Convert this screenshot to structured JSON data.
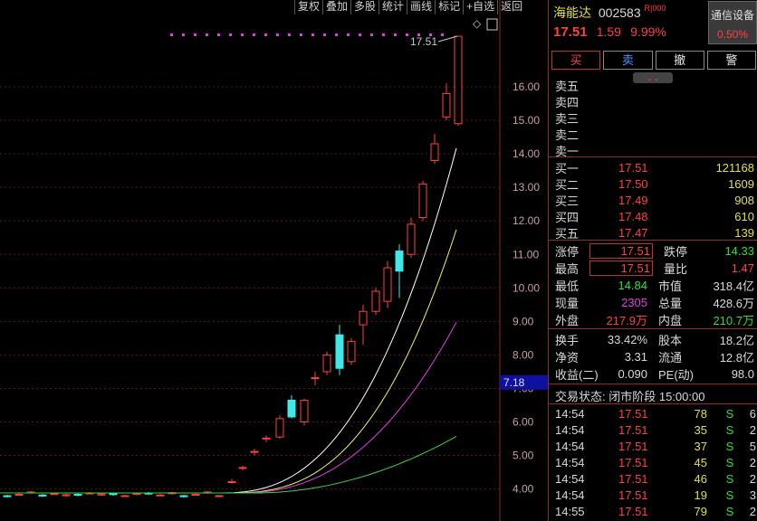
{
  "toolbar": [
    "复权",
    "叠加",
    "多股",
    "统计",
    "画线",
    "标记",
    "+自选",
    "返回"
  ],
  "stock": {
    "name": "海能达",
    "code": "002583",
    "tag": "R|000",
    "price": "17.51",
    "change": "1.59",
    "pct": "9.99%"
  },
  "settings_button": {
    "label": "通信设备",
    "value": "0.50%"
  },
  "actions": [
    "买",
    "卖",
    "撤",
    "警"
  ],
  "sell_labels": [
    "卖五",
    "卖四",
    "卖三",
    "卖二",
    "卖一"
  ],
  "buy_rows": [
    {
      "label": "买一",
      "price": "17.51",
      "vol": "121168"
    },
    {
      "label": "买二",
      "price": "17.50",
      "vol": "1609"
    },
    {
      "label": "买三",
      "price": "17.49",
      "vol": "908"
    },
    {
      "label": "买四",
      "price": "17.48",
      "vol": "610"
    },
    {
      "label": "买五",
      "price": "17.47",
      "vol": "139"
    }
  ],
  "stats": [
    {
      "k1": "涨停",
      "v1": "17.51",
      "k2": "跌停",
      "v2": "14.33"
    },
    {
      "k1": "最高",
      "v1": "17.51",
      "k2": "量比",
      "v2": "1.47"
    },
    {
      "k1": "最低",
      "v1": "14.84",
      "k2": "市值",
      "v2": "318.4亿"
    },
    {
      "k1": "现量",
      "v1": "2305",
      "k2": "总量",
      "v2": "428.6万"
    },
    {
      "k1": "外盘",
      "v1": "217.9万",
      "k2": "内盘",
      "v2": "210.7万"
    }
  ],
  "stats2": [
    {
      "k1": "换手",
      "v1": "33.42%",
      "k2": "股本",
      "v2": "18.2亿"
    },
    {
      "k1": "净资",
      "v1": "3.31",
      "k2": "流通",
      "v2": "12.8亿"
    },
    {
      "k1": "收益(二)",
      "v1": "0.090",
      "k2": "PE(动)",
      "v2": "98.0"
    }
  ],
  "trade_status": "交易状态: 闭市阶段 15:00:00",
  "trades": [
    {
      "t": "14:54",
      "p": "17.51",
      "v": "78",
      "s": "S",
      "n": "6"
    },
    {
      "t": "14:54",
      "p": "17.51",
      "v": "35",
      "s": "S",
      "n": "2"
    },
    {
      "t": "14:54",
      "p": "17.51",
      "v": "37",
      "s": "S",
      "n": "5"
    },
    {
      "t": "14:54",
      "p": "17.51",
      "v": "45",
      "s": "S",
      "n": "2"
    },
    {
      "t": "14:54",
      "p": "17.51",
      "v": "46",
      "s": "S",
      "n": "2"
    },
    {
      "t": "14:54",
      "p": "17.51",
      "v": "19",
      "s": "S",
      "n": "3"
    },
    {
      "t": "14:55",
      "p": "17.51",
      "v": "79",
      "s": "S",
      "n": "2"
    }
  ],
  "chart": {
    "y_ticks": [
      "16.00",
      "15.00",
      "14.00",
      "13.00",
      "12.00",
      "11.00",
      "10.00",
      "9.00",
      "8.00",
      "7.00",
      "6.00",
      "5.00",
      "4.00"
    ],
    "current_label": "7.18",
    "peak_label": "17.51"
  }
}
